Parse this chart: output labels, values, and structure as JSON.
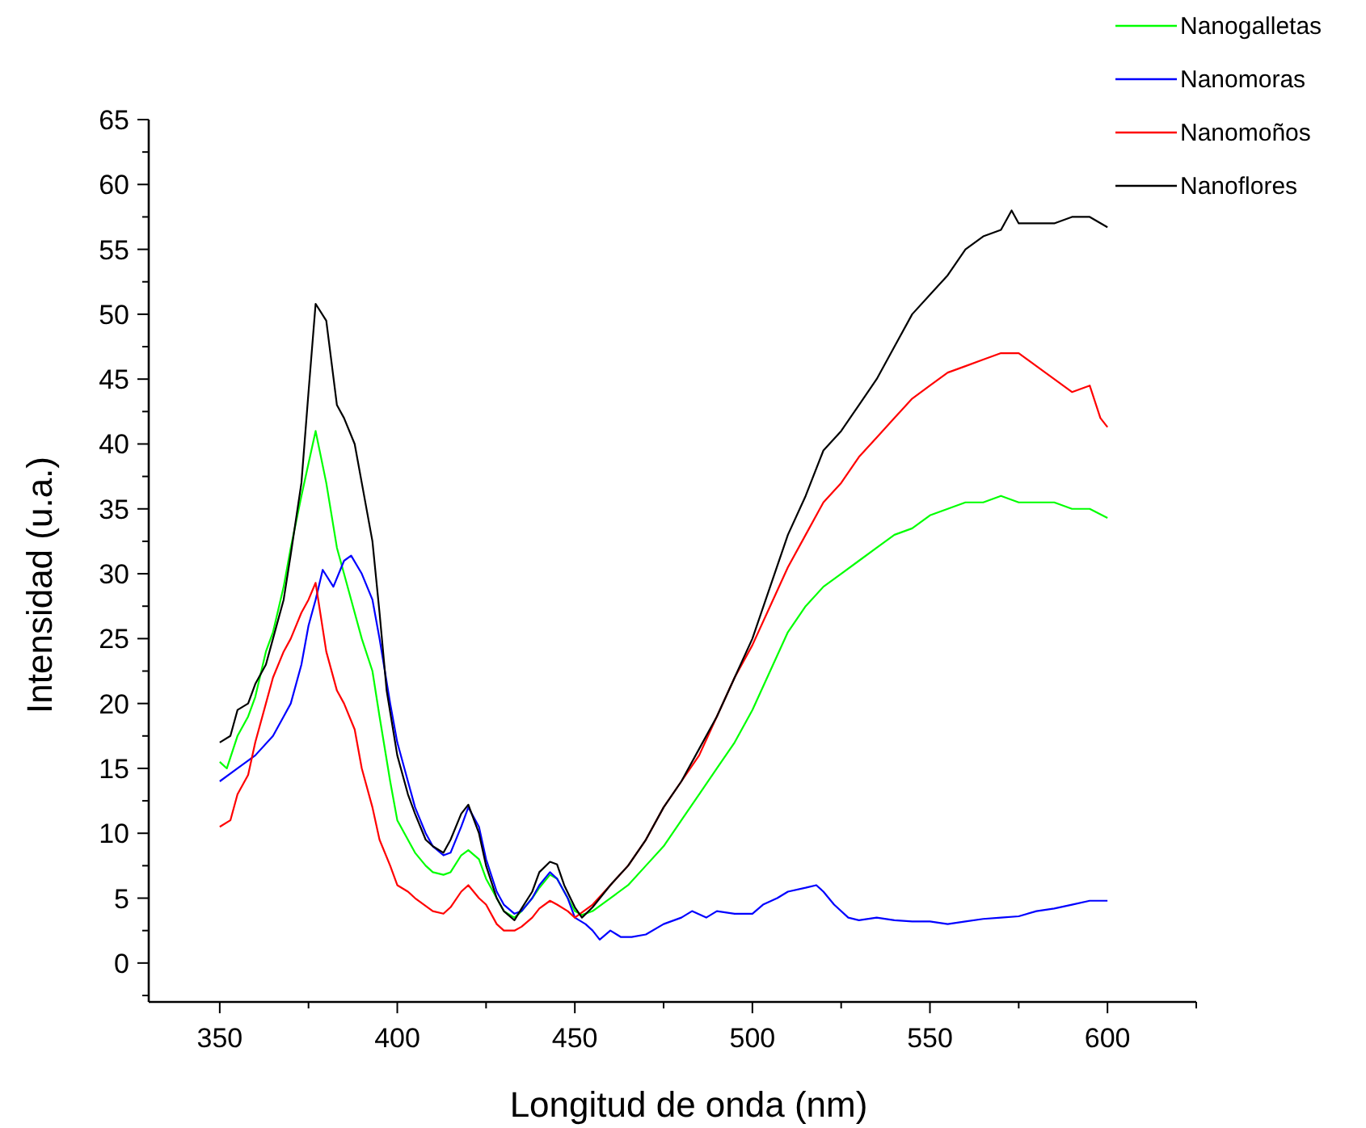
{
  "chart_data": {
    "type": "line",
    "xlabel": "Longitud de onda (nm)",
    "ylabel": "Intensidad (u.a.)",
    "xlim": [
      330,
      625
    ],
    "ylim": [
      -3,
      65
    ],
    "xticks": [
      350,
      {
        "value": 375,
        "label": null
      },
      400,
      {
        "value": 425,
        "label": null
      },
      450,
      {
        "value": 475,
        "label": null
      },
      500,
      {
        "value": 525,
        "label": null
      },
      550,
      {
        "value": 575,
        "label": null
      },
      600,
      {
        "value": 625,
        "label": null
      }
    ],
    "yticks": [
      {
        "value": -2.5,
        "label": null
      },
      0,
      {
        "value": 2.5,
        "label": null
      },
      5,
      {
        "value": 7.5,
        "label": null
      },
      10,
      {
        "value": 12.5,
        "label": null
      },
      15,
      {
        "value": 17.5,
        "label": null
      },
      20,
      {
        "value": 22.5,
        "label": null
      },
      25,
      {
        "value": 27.5,
        "label": null
      },
      30,
      {
        "value": 32.5,
        "label": null
      },
      35,
      {
        "value": 37.5,
        "label": null
      },
      40,
      {
        "value": 42.5,
        "label": null
      },
      45,
      {
        "value": 47.5,
        "label": null
      },
      50,
      {
        "value": 52.5,
        "label": null
      },
      55,
      {
        "value": 57.5,
        "label": null
      },
      60,
      {
        "value": 62.5,
        "label": null
      },
      65
    ],
    "grid": false,
    "legend": "top right",
    "marker": "none",
    "line_style": "solid",
    "series": [
      {
        "name": "Nanogalletas",
        "color": "#00ff00",
        "x": [
          350,
          352,
          355,
          358,
          360,
          363,
          365,
          368,
          370,
          373,
          375,
          377,
          380,
          383,
          385,
          388,
          390,
          393,
          395,
          398,
          400,
          403,
          405,
          408,
          410,
          413,
          415,
          418,
          420,
          423,
          425,
          428,
          430,
          433,
          435,
          438,
          440,
          443,
          445,
          448,
          450,
          452,
          455,
          460,
          465,
          470,
          475,
          480,
          485,
          490,
          495,
          500,
          505,
          510,
          515,
          520,
          525,
          530,
          535,
          540,
          545,
          550,
          555,
          560,
          565,
          570,
          575,
          580,
          585,
          590,
          595,
          600
        ],
        "values": [
          15.5,
          15,
          17.5,
          19,
          20.5,
          24,
          25.5,
          29,
          32,
          36,
          38.5,
          41,
          37,
          32,
          30,
          27,
          25,
          22.5,
          19,
          14,
          11,
          9.5,
          8.5,
          7.5,
          7,
          6.8,
          7,
          8.3,
          8.7,
          8,
          6.5,
          5,
          4,
          3.5,
          4,
          5,
          5.8,
          6.8,
          6.5,
          5,
          4,
          3.7,
          4,
          5,
          6,
          7.5,
          9,
          11,
          13,
          15,
          17,
          19.5,
          22.5,
          25.5,
          27.5,
          29,
          30,
          31,
          32,
          33,
          33.5,
          34.5,
          35,
          35.5,
          35.5,
          36,
          35.5,
          35.5,
          35.5,
          35,
          35,
          34.3
        ]
      },
      {
        "name": "Nanomoras",
        "color": "#0000ff",
        "x": [
          350,
          355,
          360,
          365,
          368,
          370,
          373,
          375,
          377,
          379,
          382,
          385,
          387,
          390,
          393,
          395,
          398,
          400,
          403,
          405,
          408,
          410,
          413,
          415,
          418,
          420,
          423,
          425,
          428,
          430,
          433,
          435,
          438,
          440,
          443,
          445,
          448,
          450,
          453,
          455,
          457,
          460,
          463,
          466,
          470,
          475,
          480,
          483,
          487,
          490,
          495,
          500,
          503,
          507,
          510,
          515,
          518,
          520,
          523,
          527,
          530,
          535,
          540,
          545,
          550,
          555,
          560,
          565,
          570,
          575,
          580,
          585,
          590,
          595,
          600
        ],
        "values": [
          14,
          15,
          16,
          17.5,
          19,
          20,
          23,
          26,
          28,
          30.3,
          29,
          31,
          31.4,
          30,
          28,
          25,
          20,
          17,
          14,
          12,
          10,
          9,
          8.3,
          8.5,
          10.5,
          12,
          10.5,
          8,
          5.5,
          4.5,
          3.8,
          4,
          5,
          6,
          7,
          6.5,
          5,
          3.5,
          3,
          2.5,
          1.8,
          2.5,
          2,
          2,
          2.2,
          3,
          3.5,
          4,
          3.5,
          4,
          3.8,
          3.8,
          4.5,
          5,
          5.5,
          5.8,
          6,
          5.5,
          4.5,
          3.5,
          3.3,
          3.5,
          3.3,
          3.2,
          3.2,
          3,
          3.2,
          3.4,
          3.5,
          3.6,
          4,
          4.2,
          4.5,
          4.8,
          4.8
        ]
      },
      {
        "name": "Nanomoños",
        "color": "#ff0000",
        "x": [
          350,
          353,
          355,
          358,
          360,
          363,
          365,
          368,
          370,
          373,
          375,
          377,
          380,
          383,
          385,
          388,
          390,
          393,
          395,
          398,
          400,
          403,
          405,
          410,
          413,
          415,
          418,
          420,
          423,
          425,
          428,
          430,
          433,
          435,
          438,
          440,
          443,
          445,
          448,
          450,
          455,
          460,
          465,
          470,
          475,
          480,
          485,
          490,
          495,
          500,
          505,
          510,
          515,
          520,
          525,
          530,
          535,
          540,
          545,
          550,
          555,
          560,
          565,
          570,
          575,
          580,
          585,
          590,
          595,
          598,
          600
        ],
        "values": [
          10.5,
          11,
          13,
          14.5,
          17,
          20,
          22,
          24,
          25,
          27,
          28,
          29.3,
          24,
          21,
          20,
          18,
          15,
          12,
          9.5,
          7.5,
          6,
          5.5,
          5,
          4,
          3.8,
          4.3,
          5.5,
          6,
          5,
          4.5,
          3,
          2.5,
          2.5,
          2.8,
          3.5,
          4.2,
          4.8,
          4.5,
          4,
          3.5,
          4.5,
          6,
          7.5,
          9.5,
          12,
          14,
          16,
          19,
          22,
          24.5,
          27.5,
          30.5,
          33,
          35.5,
          37,
          39,
          40.5,
          42,
          43.5,
          44.5,
          45.5,
          46,
          46.5,
          47,
          47,
          46,
          45,
          44,
          44.5,
          42,
          41.3
        ]
      },
      {
        "name": "Nanoflores",
        "color": "#000000",
        "x": [
          350,
          353,
          355,
          358,
          360,
          363,
          365,
          368,
          370,
          373,
          375,
          377,
          380,
          383,
          385,
          388,
          390,
          393,
          395,
          397,
          400,
          403,
          405,
          408,
          410,
          413,
          415,
          418,
          420,
          423,
          425,
          428,
          430,
          433,
          435,
          438,
          440,
          443,
          445,
          447,
          450,
          452,
          455,
          460,
          465,
          470,
          475,
          480,
          485,
          490,
          495,
          500,
          505,
          510,
          515,
          520,
          525,
          530,
          535,
          540,
          545,
          550,
          555,
          560,
          565,
          570,
          573,
          575,
          580,
          585,
          590,
          595,
          600
        ],
        "values": [
          17,
          17.5,
          19.5,
          20,
          21.5,
          23,
          25,
          28,
          31.5,
          37,
          44,
          50.8,
          49.5,
          43,
          42,
          40,
          37,
          32.5,
          27,
          21,
          16,
          13,
          11.5,
          9.5,
          9,
          8.5,
          9.5,
          11.5,
          12.2,
          10,
          7.5,
          5,
          4,
          3.3,
          4.2,
          5.5,
          7,
          7.8,
          7.6,
          6,
          4.3,
          3.5,
          4.3,
          6,
          7.5,
          9.5,
          12,
          14,
          16.5,
          19,
          22,
          25,
          29,
          33,
          36,
          39.5,
          41,
          43,
          45,
          47.5,
          50,
          51.5,
          53,
          55,
          56,
          56.5,
          58,
          57,
          57,
          57,
          57.5,
          57.5,
          56.7
        ]
      }
    ]
  }
}
